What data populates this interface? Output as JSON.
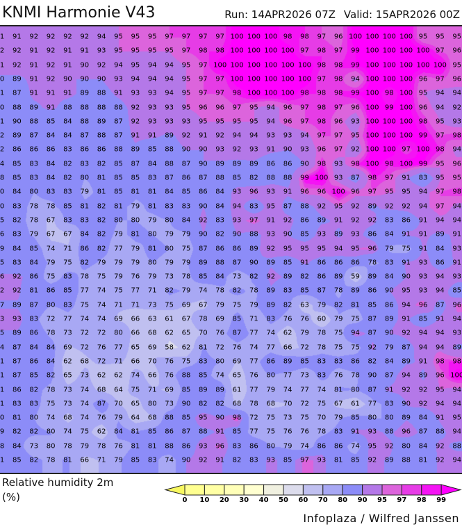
{
  "header": {
    "title": "KNMI Harmonie V43",
    "run": "Run: 14APR2026 07Z",
    "valid": "Valid: 15APR2026 00Z"
  },
  "variable_label": "Relative humidity 2m",
  "unit_label": "(%)",
  "credit": "Infoplaza / Wilfred Janssen",
  "legend": {
    "ticks": [
      "0",
      "10",
      "20",
      "30",
      "40",
      "50",
      "60",
      "70",
      "80",
      "90",
      "95",
      "97",
      "98",
      "99"
    ],
    "below_color": "#f8f860",
    "above_color": "#ff00ff",
    "colors": [
      "#ffff90",
      "#ffffa4",
      "#ffffb8",
      "#ffffd0",
      "#f0f0e0",
      "#dcdcec",
      "#c0c0f0",
      "#a8a8f4",
      "#8c8cf8",
      "#b478e8",
      "#dc64dc",
      "#e63ce6",
      "#f414f4"
    ]
  },
  "grid": {
    "rows": [
      [
        1,
        91,
        92,
        92,
        92,
        92,
        94,
        95,
        95,
        95,
        97,
        97,
        97,
        97,
        100,
        100,
        100,
        98,
        98,
        97,
        96,
        100,
        100,
        100,
        100,
        95,
        95,
        95
      ],
      [
        2,
        92,
        91,
        92,
        91,
        91,
        93,
        95,
        95,
        95,
        95,
        97,
        98,
        98,
        100,
        100,
        100,
        100,
        97,
        98,
        97,
        99,
        100,
        100,
        100,
        100,
        97,
        96
      ],
      [
        1,
        92,
        91,
        92,
        91,
        90,
        92,
        94,
        95,
        94,
        94,
        95,
        97,
        100,
        100,
        100,
        100,
        100,
        100,
        98,
        98,
        99,
        100,
        100,
        100,
        100,
        100,
        95
      ],
      [
        0,
        89,
        91,
        92,
        90,
        90,
        90,
        93,
        94,
        94,
        94,
        95,
        97,
        97,
        100,
        100,
        100,
        100,
        100,
        97,
        98,
        94,
        100,
        100,
        100,
        96,
        97,
        96
      ],
      [
        1,
        87,
        91,
        91,
        91,
        89,
        88,
        91,
        93,
        93,
        94,
        95,
        97,
        97,
        98,
        100,
        100,
        100,
        98,
        98,
        98,
        99,
        100,
        98,
        100,
        95,
        94,
        94
      ],
      [
        0,
        88,
        89,
        91,
        88,
        88,
        88,
        88,
        92,
        93,
        93,
        95,
        96,
        96,
        97,
        95,
        94,
        96,
        97,
        98,
        97,
        96,
        100,
        99,
        100,
        96,
        94,
        92
      ],
      [
        1,
        90,
        88,
        85,
        84,
        88,
        89,
        87,
        92,
        93,
        93,
        93,
        95,
        95,
        95,
        95,
        94,
        96,
        97,
        98,
        96,
        93,
        100,
        100,
        100,
        98,
        95,
        93
      ],
      [
        2,
        89,
        87,
        84,
        84,
        87,
        88,
        87,
        91,
        91,
        89,
        92,
        91,
        92,
        94,
        94,
        93,
        93,
        94,
        97,
        97,
        95,
        100,
        100,
        100,
        99,
        97,
        98
      ],
      [
        2,
        86,
        86,
        86,
        83,
        86,
        86,
        88,
        89,
        85,
        88,
        90,
        90,
        93,
        92,
        93,
        91,
        90,
        93,
        96,
        97,
        92,
        100,
        100,
        97,
        100,
        98,
        94
      ],
      [
        4,
        85,
        83,
        84,
        82,
        83,
        82,
        85,
        87,
        84,
        88,
        87,
        90,
        89,
        89,
        89,
        86,
        86,
        90,
        98,
        93,
        98,
        100,
        98,
        100,
        99,
        95,
        96
      ],
      [
        8,
        85,
        83,
        84,
        82,
        80,
        81,
        85,
        85,
        83,
        87,
        86,
        87,
        88,
        85,
        82,
        88,
        88,
        99,
        100,
        93,
        87,
        98,
        97,
        91,
        83,
        95,
        95
      ],
      [
        0,
        84,
        80,
        83,
        83,
        79,
        81,
        85,
        81,
        81,
        84,
        85,
        86,
        84,
        93,
        96,
        93,
        91,
        96,
        96,
        100,
        96,
        97,
        95,
        95,
        94,
        97,
        98
      ],
      [
        0,
        83,
        78,
        78,
        85,
        81,
        82,
        81,
        79,
        81,
        83,
        83,
        90,
        84,
        94,
        83,
        95,
        87,
        88,
        92,
        95,
        92,
        89,
        92,
        92,
        94,
        97,
        94
      ],
      [
        5,
        82,
        78,
        67,
        83,
        83,
        82,
        80,
        80,
        79,
        80,
        84,
        92,
        83,
        93,
        97,
        91,
        92,
        86,
        89,
        91,
        92,
        92,
        83,
        86,
        91,
        94,
        94
      ],
      [
        6,
        83,
        79,
        67,
        67,
        84,
        82,
        79,
        81,
        80,
        79,
        79,
        90,
        82,
        90,
        88,
        93,
        90,
        85,
        93,
        89,
        93,
        86,
        84,
        91,
        91,
        89,
        91
      ],
      [
        9,
        84,
        85,
        74,
        71,
        86,
        82,
        77,
        79,
        81,
        80,
        75,
        87,
        86,
        86,
        89,
        92,
        95,
        95,
        95,
        94,
        95,
        96,
        79,
        75,
        91,
        84,
        93
      ],
      [
        5,
        83,
        84,
        79,
        75,
        82,
        79,
        79,
        79,
        80,
        79,
        79,
        89,
        88,
        87,
        90,
        89,
        85,
        91,
        86,
        86,
        86,
        78,
        83,
        91,
        93,
        86,
        91
      ],
      [
        6,
        92,
        86,
        75,
        83,
        78,
        75,
        79,
        76,
        79,
        73,
        78,
        85,
        84,
        73,
        82,
        92,
        89,
        82,
        86,
        89,
        59,
        89,
        84,
        90,
        93,
        94,
        93
      ],
      [
        2,
        92,
        81,
        86,
        85,
        77,
        74,
        75,
        77,
        71,
        82,
        79,
        74,
        78,
        82,
        78,
        89,
        83,
        85,
        87,
        78,
        89,
        86,
        90,
        95,
        93,
        94,
        85
      ],
      [
        7,
        89,
        87,
        80,
        83,
        75,
        74,
        71,
        71,
        73,
        75,
        69,
        67,
        79,
        75,
        79,
        89,
        82,
        63,
        79,
        82,
        81,
        85,
        86,
        94,
        96,
        87,
        96
      ],
      [
        3,
        93,
        83,
        72,
        77,
        74,
        74,
        69,
        66,
        63,
        61,
        67,
        78,
        69,
        85,
        71,
        83,
        76,
        76,
        60,
        79,
        75,
        87,
        89,
        91,
        85,
        91,
        94
      ],
      [
        5,
        89,
        86,
        78,
        73,
        72,
        72,
        80,
        66,
        68,
        62,
        65,
        70,
        76,
        87,
        77,
        74,
        62,
        79,
        78,
        75,
        94,
        87,
        90,
        92,
        94,
        94,
        93
      ],
      [
        4,
        87,
        84,
        84,
        69,
        72,
        76,
        77,
        65,
        69,
        58,
        62,
        81,
        72,
        76,
        74,
        77,
        66,
        72,
        78,
        75,
        75,
        92,
        79,
        87,
        94,
        94,
        89
      ],
      [
        1,
        87,
        86,
        84,
        62,
        68,
        72,
        71,
        66,
        70,
        76,
        75,
        83,
        80,
        69,
        77,
        86,
        89,
        85,
        83,
        83,
        86,
        82,
        84,
        89,
        91,
        98,
        98
      ],
      [
        1,
        87,
        85,
        82,
        65,
        73,
        62,
        62,
        74,
        66,
        76,
        88,
        85,
        74,
        65,
        76,
        80,
        77,
        73,
        83,
        76,
        78,
        90,
        87,
        94,
        89,
        96,
        100
      ],
      [
        1,
        86,
        82,
        78,
        73,
        74,
        68,
        64,
        75,
        71,
        69,
        85,
        89,
        89,
        61,
        77,
        79,
        74,
        77,
        74,
        81,
        80,
        87,
        91,
        92,
        92,
        95,
        94
      ],
      [
        1,
        83,
        83,
        75,
        73,
        74,
        87,
        70,
        65,
        80,
        73,
        90,
        82,
        82,
        68,
        78,
        68,
        70,
        72,
        75,
        67,
        61,
        77,
        83,
        90,
        92,
        94,
        94
      ],
      [
        0,
        81,
        80,
        74,
        68,
        74,
        76,
        79,
        64,
        68,
        88,
        85,
        95,
        90,
        98,
        72,
        75,
        73,
        75,
        70,
        79,
        85,
        80,
        80,
        89,
        84,
        91,
        95
      ],
      [
        9,
        82,
        82,
        80,
        74,
        75,
        62,
        84,
        81,
        85,
        86,
        87,
        88,
        91,
        85,
        77,
        75,
        76,
        76,
        78,
        83,
        91,
        93,
        88,
        96,
        87,
        88,
        94
      ],
      [
        8,
        84,
        73,
        80,
        78,
        79,
        78,
        76,
        81,
        81,
        88,
        86,
        93,
        96,
        83,
        86,
        80,
        79,
        74,
        86,
        86,
        74,
        95,
        92,
        80,
        84,
        92,
        88
      ],
      [
        1,
        85,
        82,
        78,
        81,
        66,
        71,
        79,
        85,
        83,
        74,
        90,
        92,
        91,
        82,
        83,
        93,
        85,
        97,
        93,
        81,
        85,
        92,
        89,
        88,
        81,
        92,
        94
      ]
    ]
  }
}
